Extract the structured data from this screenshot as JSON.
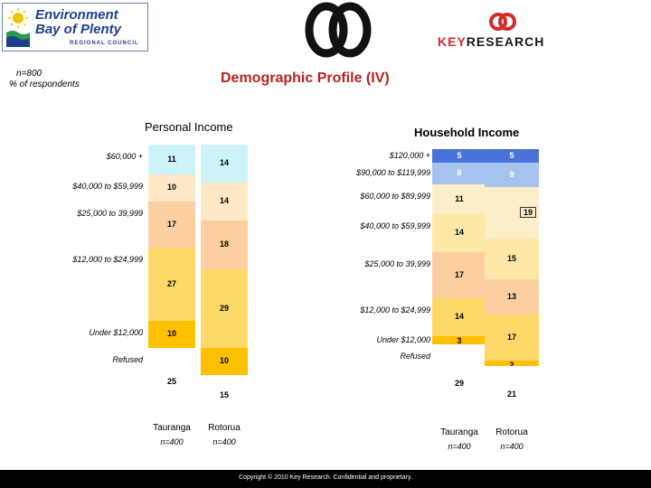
{
  "header": {
    "org_logo": {
      "line1": "Environment",
      "line2": "Bay of Plenty",
      "line3": "REGIONAL COUNCIL"
    },
    "brand_logo": {
      "key": "KEY",
      "research": "RESEARCH"
    }
  },
  "meta": {
    "sample": "n=800",
    "unit": "% of respondents"
  },
  "page_title": "Demographic Profile (IV)",
  "colors": {
    "top": "#ccf2fa",
    "second": "#fde9c5",
    "third": "#fbcfa0",
    "fourth": "#fdd96a",
    "fifth": "#ffc000",
    "sixth": "#fde394",
    "seventh": "#ffffff",
    "blue_top": "#4a73d9",
    "blue_second": "#a6c2ee",
    "income_60_89": "#fbeec8",
    "income_40_59": "#fde8a8",
    "income_25_39": "#fbcfa0",
    "income_12_24": "#fdd96a",
    "income_under12": "#ffc000",
    "refused": "#ffffff"
  },
  "chart_data": [
    {
      "type": "bar",
      "stacked": true,
      "title": "Personal Income",
      "categories": [
        "Tauranga",
        "Rotorua"
      ],
      "sample_labels": [
        "n=400",
        "n=400"
      ],
      "series": [
        {
          "name": "$60,000 +",
          "values": [
            11,
            14
          ]
        },
        {
          "name": "$40,000 to $59,999",
          "values": [
            10,
            14
          ]
        },
        {
          "name": "$25,000 to 39,999",
          "values": [
            17,
            18
          ]
        },
        {
          "name": "$12,000 to $24,999",
          "values": [
            27,
            29
          ]
        },
        {
          "name": "Under $12,000",
          "values": [
            10,
            10
          ]
        },
        {
          "name": "Refused",
          "values": [
            25,
            15
          ]
        }
      ],
      "ylim": [
        0,
        100
      ]
    },
    {
      "type": "bar",
      "stacked": true,
      "title": "Household Income",
      "categories": [
        "Tauranga",
        "Rotorua"
      ],
      "sample_labels": [
        "n=400",
        "n=400"
      ],
      "series": [
        {
          "name": "$120,000 +",
          "values": [
            5,
            5
          ]
        },
        {
          "name": "$90,000 to $119,999",
          "values": [
            8,
            9
          ]
        },
        {
          "name": "$60,000 to $89,999",
          "values": [
            11,
            19
          ]
        },
        {
          "name": "$40,000 to $59,999",
          "values": [
            14,
            15
          ]
        },
        {
          "name": "$25,000 to 39,999",
          "values": [
            17,
            13
          ]
        },
        {
          "name": "$12,000 to $24,999",
          "values": [
            14,
            17
          ]
        },
        {
          "name": "Under $12,000",
          "values": [
            3,
            2
          ]
        },
        {
          "name": "Refused",
          "values": [
            29,
            21
          ]
        }
      ],
      "highlighted": [
        "19"
      ],
      "ylim": [
        0,
        100
      ]
    }
  ],
  "footer": "Copyright © 2010 Key Research. Confidential and proprietary."
}
